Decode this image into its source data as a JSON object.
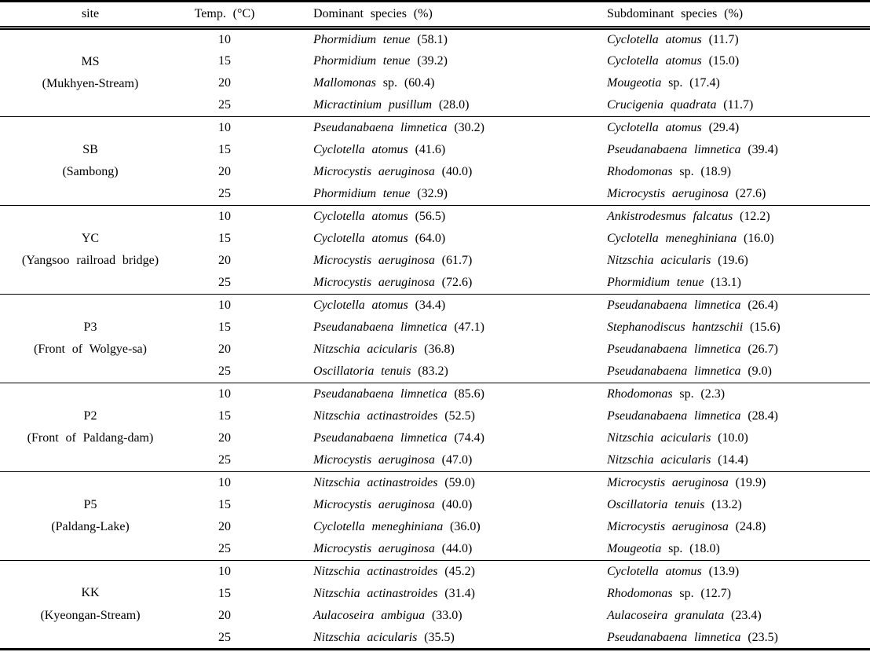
{
  "colors": {
    "text": "#000000",
    "background": "#ffffff",
    "rule": "#000000"
  },
  "header": {
    "site": "site",
    "temp": "Temp. (°C)",
    "dominant": "Dominant species (%)",
    "subdominant": "Subdominant species (%)"
  },
  "sections": [
    {
      "site_code": "MS",
      "site_name": "(Mukhyen-Stream)",
      "rows": [
        {
          "temp": "10",
          "dominant": {
            "species": "Phormidium tenue",
            "qualifier": "",
            "pct": "58.1"
          },
          "subdominant": {
            "species": "Cyclotella atomus",
            "qualifier": "",
            "pct": "11.7"
          }
        },
        {
          "temp": "15",
          "dominant": {
            "species": "Phormidium tenue",
            "qualifier": "",
            "pct": "39.2"
          },
          "subdominant": {
            "species": "Cyclotella atomus",
            "qualifier": "",
            "pct": "15.0"
          }
        },
        {
          "temp": "20",
          "dominant": {
            "species": "Mallomonas",
            "qualifier": "sp.",
            "pct": "60.4"
          },
          "subdominant": {
            "species": "Mougeotia",
            "qualifier": "sp.",
            "pct": "17.4"
          }
        },
        {
          "temp": "25",
          "dominant": {
            "species": "Micractinium pusillum",
            "qualifier": "",
            "pct": "28.0"
          },
          "subdominant": {
            "species": "Crucigenia quadrata",
            "qualifier": "",
            "pct": "11.7"
          }
        }
      ]
    },
    {
      "site_code": "SB",
      "site_name": "(Sambong)",
      "rows": [
        {
          "temp": "10",
          "dominant": {
            "species": "Pseudanabaena limnetica",
            "qualifier": "",
            "pct": "30.2"
          },
          "subdominant": {
            "species": "Cyclotella atomus",
            "qualifier": "",
            "pct": "29.4"
          }
        },
        {
          "temp": "15",
          "dominant": {
            "species": "Cyclotella atomus",
            "qualifier": "",
            "pct": "41.6"
          },
          "subdominant": {
            "species": "Pseudanabaena limnetica",
            "qualifier": "",
            "pct": "39.4"
          }
        },
        {
          "temp": "20",
          "dominant": {
            "species": "Microcystis aeruginosa",
            "qualifier": "",
            "pct": "40.0"
          },
          "subdominant": {
            "species": "Rhodomonas",
            "qualifier": "sp.",
            "pct": "18.9"
          }
        },
        {
          "temp": "25",
          "dominant": {
            "species": "Phormidium tenue",
            "qualifier": "",
            "pct": "32.9"
          },
          "subdominant": {
            "species": "Microcystis aeruginosa",
            "qualifier": "",
            "pct": "27.6"
          }
        }
      ]
    },
    {
      "site_code": "YC",
      "site_name": "(Yangsoo railroad bridge)",
      "rows": [
        {
          "temp": "10",
          "dominant": {
            "species": "Cyclotella atomus",
            "qualifier": "",
            "pct": "56.5"
          },
          "subdominant": {
            "species": "Ankistrodesmus falcatus",
            "qualifier": "",
            "pct": "12.2"
          }
        },
        {
          "temp": "15",
          "dominant": {
            "species": "Cyclotella atomus",
            "qualifier": "",
            "pct": "64.0"
          },
          "subdominant": {
            "species": "Cyclotella meneghiniana",
            "qualifier": "",
            "pct": "16.0"
          }
        },
        {
          "temp": "20",
          "dominant": {
            "species": "Microcystis aeruginosa",
            "qualifier": "",
            "pct": "61.7"
          },
          "subdominant": {
            "species": "Nitzschia acicularis",
            "qualifier": "",
            "pct": "19.6"
          }
        },
        {
          "temp": "25",
          "dominant": {
            "species": "Microcystis aeruginosa",
            "qualifier": "",
            "pct": "72.6"
          },
          "subdominant": {
            "species": "Phormidium tenue",
            "qualifier": "",
            "pct": "13.1"
          }
        }
      ]
    },
    {
      "site_code": "P3",
      "site_name": "(Front of Wolgye-sa)",
      "rows": [
        {
          "temp": "10",
          "dominant": {
            "species": "Cyclotella atomus",
            "qualifier": "",
            "pct": "34.4"
          },
          "subdominant": {
            "species": "Pseudanabaena limnetica",
            "qualifier": "",
            "pct": "26.4"
          }
        },
        {
          "temp": "15",
          "dominant": {
            "species": "Pseudanabaena limnetica",
            "qualifier": "",
            "pct": "47.1"
          },
          "subdominant": {
            "species": "Stephanodiscus hantzschii",
            "qualifier": "",
            "pct": "15.6"
          }
        },
        {
          "temp": "20",
          "dominant": {
            "species": "Nitzschia acicularis",
            "qualifier": "",
            "pct": "36.8"
          },
          "subdominant": {
            "species": "Pseudanabaena limnetica",
            "qualifier": "",
            "pct": "26.7"
          }
        },
        {
          "temp": "25",
          "dominant": {
            "species": "Oscillatoria tenuis",
            "qualifier": "",
            "pct": "83.2"
          },
          "subdominant": {
            "species": "Pseudanabaena limnetica",
            "qualifier": "",
            "pct": "9.0"
          }
        }
      ]
    },
    {
      "site_code": "P2",
      "site_name": "(Front of Paldang-dam)",
      "rows": [
        {
          "temp": "10",
          "dominant": {
            "species": "Pseudanabaena limnetica",
            "qualifier": "",
            "pct": "85.6"
          },
          "subdominant": {
            "species": "Rhodomonas",
            "qualifier": "sp.",
            "pct": "2.3"
          }
        },
        {
          "temp": "15",
          "dominant": {
            "species": "Nitzschia actinastroides",
            "qualifier": "",
            "pct": "52.5"
          },
          "subdominant": {
            "species": "Pseudanabaena limnetica",
            "qualifier": "",
            "pct": "28.4"
          }
        },
        {
          "temp": "20",
          "dominant": {
            "species": "Pseudanabaena limnetica",
            "qualifier": "",
            "pct": "74.4"
          },
          "subdominant": {
            "species": "Nitzschia acicularis",
            "qualifier": "",
            "pct": "10.0"
          }
        },
        {
          "temp": "25",
          "dominant": {
            "species": "Microcystis aeruginosa",
            "qualifier": "",
            "pct": "47.0"
          },
          "subdominant": {
            "species": "Nitzschia acicularis",
            "qualifier": "",
            "pct": "14.4"
          }
        }
      ]
    },
    {
      "site_code": "P5",
      "site_name": "(Paldang-Lake)",
      "rows": [
        {
          "temp": "10",
          "dominant": {
            "species": "Nitzschia actinastroides",
            "qualifier": "",
            "pct": "59.0"
          },
          "subdominant": {
            "species": "Microcystis aeruginosa",
            "qualifier": "",
            "pct": "19.9"
          }
        },
        {
          "temp": "15",
          "dominant": {
            "species": "Microcystis aeruginosa",
            "qualifier": "",
            "pct": "40.0"
          },
          "subdominant": {
            "species": "Oscillatoria tenuis",
            "qualifier": "",
            "pct": "13.2"
          }
        },
        {
          "temp": "20",
          "dominant": {
            "species": "Cyclotella meneghiniana",
            "qualifier": "",
            "pct": "36.0"
          },
          "subdominant": {
            "species": "Microcystis aeruginosa",
            "qualifier": "",
            "pct": "24.8"
          }
        },
        {
          "temp": "25",
          "dominant": {
            "species": "Microcystis aeruginosa",
            "qualifier": "",
            "pct": "44.0"
          },
          "subdominant": {
            "species": "Mougeotia",
            "qualifier": "sp.",
            "pct": "18.0"
          }
        }
      ]
    },
    {
      "site_code": "KK",
      "site_name": "(Kyeongan-Stream)",
      "rows": [
        {
          "temp": "10",
          "dominant": {
            "species": "Nitzschia actinastroides",
            "qualifier": "",
            "pct": "45.2"
          },
          "subdominant": {
            "species": "Cyclotella atomus",
            "qualifier": "",
            "pct": "13.9"
          }
        },
        {
          "temp": "15",
          "dominant": {
            "species": "Nitzschia actinastroides",
            "qualifier": "",
            "pct": "31.4"
          },
          "subdominant": {
            "species": "Rhodomonas",
            "qualifier": "sp.",
            "pct": "12.7"
          }
        },
        {
          "temp": "20",
          "dominant": {
            "species": "Aulacoseira ambigua",
            "qualifier": "",
            "pct": "33.0"
          },
          "subdominant": {
            "species": "Aulacoseira granulata",
            "qualifier": "",
            "pct": "23.4"
          }
        },
        {
          "temp": "25",
          "dominant": {
            "species": "Nitzschia acicularis",
            "qualifier": "",
            "pct": "35.5"
          },
          "subdominant": {
            "species": "Pseudanabaena limnetica",
            "qualifier": "",
            "pct": "23.5"
          }
        }
      ]
    }
  ]
}
